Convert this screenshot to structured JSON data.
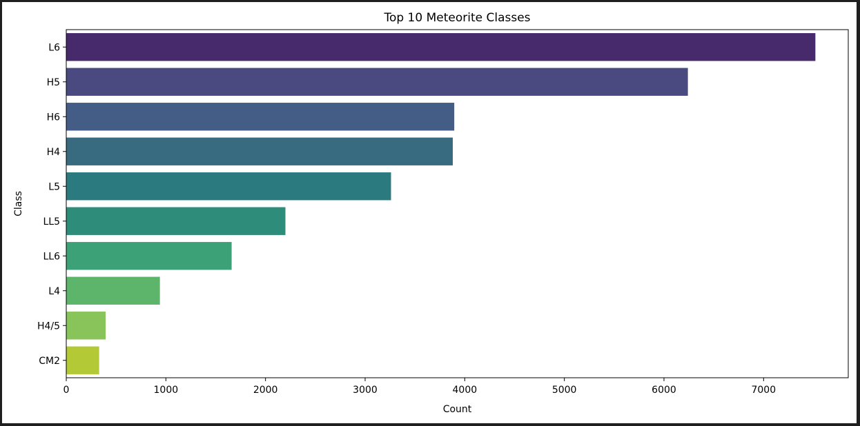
{
  "chart_data": {
    "type": "bar",
    "orientation": "horizontal",
    "title": "Top 10 Meteorite Classes",
    "xlabel": "Count",
    "ylabel": "Class",
    "categories": [
      "L6",
      "H5",
      "H6",
      "H4",
      "L5",
      "LL5",
      "LL6",
      "L4",
      "H4/5",
      "CM2"
    ],
    "values": [
      7520,
      6240,
      3895,
      3880,
      3260,
      2200,
      1660,
      940,
      395,
      330
    ],
    "colors": [
      "#482475",
      "#414487",
      "#355f8d",
      "#2a788e",
      "#21918c",
      "#22a884",
      "#44bf70",
      "#7ad151",
      "#bddf26",
      "#fde725"
    ],
    "bar_colors_shown": [
      "#472a6b",
      "#4a4a80",
      "#445d86",
      "#396b80",
      "#2b7a80",
      "#2e8c7a",
      "#3ca176",
      "#5db56b",
      "#88c45a",
      "#b3ca36"
    ],
    "xlim": [
      0,
      7850
    ],
    "xticks": [
      0,
      1000,
      2000,
      3000,
      4000,
      5000,
      6000,
      7000
    ],
    "grid": false,
    "legend": "none"
  }
}
